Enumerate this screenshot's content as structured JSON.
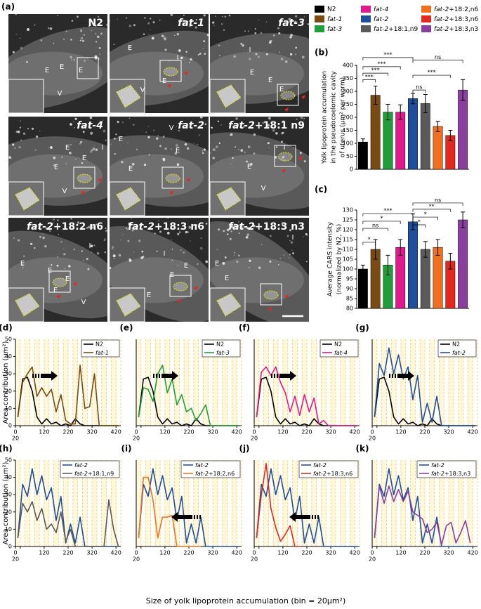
{
  "figure": {
    "x_axis_label": "Size of yolk lipoprotein accumulation (bin = 20μm²)"
  },
  "panel_a": {
    "panel_label": "(a)",
    "images": [
      {
        "title": "N2",
        "labels": [
          "E",
          "E",
          "E",
          "V"
        ]
      },
      {
        "title": "fat-1",
        "labels": [
          "E",
          "I",
          "V",
          "E"
        ]
      },
      {
        "title": "fat-3",
        "labels": [
          "I",
          "E",
          "E",
          "E"
        ]
      },
      {
        "title": "fat-4",
        "labels": [
          "I",
          "E",
          "E",
          "E",
          "V"
        ]
      },
      {
        "title": "fat-2",
        "labels": [
          "V",
          "E",
          "E",
          "E"
        ]
      },
      {
        "title": "fat-2+18:1 n9",
        "labels": [
          "I",
          "E",
          "V"
        ]
      },
      {
        "title": "fat-2+18:2 n6",
        "labels": [
          "I",
          "E",
          "E",
          "E",
          "E",
          "V"
        ]
      },
      {
        "title": "fat-2+18:3 n6",
        "labels": [
          "I",
          "E",
          "E",
          "E"
        ]
      },
      {
        "title": "fat-2+18:3 n3",
        "labels": [
          "I",
          "E",
          "E"
        ]
      }
    ]
  },
  "chart_data": [
    {
      "type": "bar",
      "panel_label": "(b)",
      "ylabel": [
        "Yolk lipoprotein accumulation",
        "in the pseudocoelomic cavity",
        "of uterus (μm² per worm)"
      ],
      "categories": [
        "N2",
        "fat-1",
        "fat-3",
        "fat-4",
        "fat-2",
        "fat-2+18:1,n9",
        "fat-2+18:2,n6",
        "fat-2+18:3,n6",
        "fat-2+18:3,n3"
      ],
      "colors": [
        "#000000",
        "#7b4a12",
        "#1f9e3a",
        "#e0198c",
        "#1f4e9c",
        "#5a5a5a",
        "#f07020",
        "#e5281e",
        "#8a3fa0"
      ],
      "values": [
        105,
        285,
        220,
        220,
        272,
        253,
        165,
        130,
        305
      ],
      "errors": [
        12,
        35,
        30,
        28,
        20,
        35,
        20,
        20,
        40
      ],
      "ylim": [
        0,
        400
      ],
      "yticks": [
        0,
        50,
        100,
        150,
        200,
        250,
        300,
        350,
        400
      ],
      "annotations": [
        "***",
        "***",
        "***",
        "***",
        "ns",
        "***",
        "ns"
      ]
    },
    {
      "type": "bar",
      "panel_label": "(c)",
      "ylabel": [
        "Average CARS intensity",
        "(normalized by N2, %)"
      ],
      "colors": [
        "#000000",
        "#7b4a12",
        "#1f9e3a",
        "#e0198c",
        "#1f4e9c",
        "#5a5a5a",
        "#f07020",
        "#e5281e",
        "#8a3fa0"
      ],
      "values": [
        100,
        110,
        102,
        111,
        124,
        110,
        111,
        104,
        125
      ],
      "errors": [
        2,
        5,
        5,
        4,
        4,
        4,
        4,
        4,
        4
      ],
      "ylim": [
        80,
        130
      ],
      "yticks": [
        80,
        85,
        90,
        95,
        100,
        105,
        110,
        115,
        120,
        125,
        130
      ],
      "annotations": [
        "*",
        "ns",
        "*",
        "***",
        "*",
        "*",
        "**",
        "ns"
      ]
    },
    {
      "type": "line",
      "panel_label": "(d)",
      "ylabel": "Area contribution (μm²)",
      "x": [
        10,
        30,
        50,
        70,
        90,
        110,
        130,
        150,
        170,
        190,
        210,
        230,
        250,
        270,
        290,
        310,
        330,
        350,
        370,
        390,
        410,
        430
      ],
      "series": [
        {
          "name": "N2",
          "color": "#000000",
          "values": [
            5,
            27,
            28,
            20,
            5,
            1,
            4,
            1,
            2,
            0,
            1,
            0,
            4,
            1,
            0,
            0,
            0,
            0,
            0,
            0,
            0,
            0
          ]
        },
        {
          "name": "fat-1",
          "color": "#7b4a12",
          "values": [
            5,
            25,
            30,
            34,
            17,
            22,
            17,
            21,
            8,
            18,
            3,
            1,
            1,
            35,
            10,
            11,
            30,
            0,
            0,
            0,
            0,
            0
          ]
        }
      ],
      "xlim": [
        0,
        440
      ],
      "ylim": [
        0,
        50
      ],
      "xticks": [
        0,
        20,
        120,
        220,
        320,
        420
      ],
      "yticks": [
        0,
        10,
        20,
        30,
        40,
        50
      ]
    },
    {
      "type": "line",
      "panel_label": "(e)",
      "x": [
        10,
        30,
        50,
        70,
        90,
        110,
        130,
        150,
        170,
        190,
        210,
        230,
        250,
        270,
        290,
        310,
        330,
        350,
        370,
        390,
        410,
        430
      ],
      "series": [
        {
          "name": "N2",
          "color": "#000000",
          "values": [
            5,
            27,
            28,
            20,
            5,
            1,
            4,
            1,
            2,
            0,
            1,
            0,
            4,
            1,
            0,
            0,
            0,
            0,
            0,
            0,
            0,
            0
          ]
        },
        {
          "name": "fat-3",
          "color": "#1f9e3a",
          "values": [
            5,
            22,
            21,
            14,
            30,
            35,
            19,
            27,
            12,
            18,
            8,
            10,
            3,
            7,
            12,
            0,
            0,
            0,
            0,
            0,
            0,
            0
          ]
        }
      ],
      "xlim": [
        0,
        440
      ],
      "ylim": [
        0,
        50
      ],
      "xticks": [
        0,
        20,
        120,
        220,
        320,
        420
      ]
    },
    {
      "type": "line",
      "panel_label": "(f)",
      "x": [
        10,
        30,
        50,
        70,
        90,
        110,
        130,
        150,
        170,
        190,
        210,
        230,
        250,
        270,
        290,
        310,
        330,
        350,
        370,
        390,
        410,
        430
      ],
      "series": [
        {
          "name": "N2",
          "color": "#000000",
          "values": [
            5,
            27,
            28,
            20,
            5,
            1,
            4,
            1,
            2,
            0,
            1,
            0,
            4,
            1,
            0,
            0,
            0,
            0,
            0,
            0,
            0,
            0
          ]
        },
        {
          "name": "fat-4",
          "color": "#e0198c",
          "values": [
            5,
            31,
            34,
            29,
            34,
            25,
            19,
            8,
            17,
            6,
            18,
            8,
            16,
            1,
            3,
            0,
            0,
            0,
            0,
            0,
            0,
            0
          ]
        }
      ],
      "xlim": [
        0,
        440
      ],
      "ylim": [
        0,
        50
      ],
      "xticks": [
        0,
        20,
        120,
        220,
        320,
        420
      ]
    },
    {
      "type": "line",
      "panel_label": "(g)",
      "x": [
        10,
        30,
        50,
        70,
        90,
        110,
        130,
        150,
        170,
        190,
        210,
        230,
        250,
        270,
        290,
        310,
        330,
        350,
        370,
        390,
        410,
        430
      ],
      "series": [
        {
          "name": "N2",
          "color": "#000000",
          "values": [
            5,
            27,
            28,
            20,
            5,
            1,
            4,
            1,
            2,
            0,
            1,
            0,
            4,
            1,
            0,
            0,
            0,
            0,
            0,
            0,
            0,
            0
          ]
        },
        {
          "name": "fat-2",
          "color": "#1f4e9c",
          "values": [
            5,
            36,
            29,
            45,
            30,
            41,
            27,
            34,
            15,
            29,
            2,
            13,
            2,
            17,
            0,
            0,
            0,
            0,
            0,
            0,
            0,
            0
          ]
        }
      ],
      "xlim": [
        0,
        440
      ],
      "ylim": [
        0,
        50
      ],
      "xticks": [
        0,
        20,
        120,
        220,
        320,
        420
      ]
    },
    {
      "type": "line",
      "panel_label": "(h)",
      "ylabel": "Area contribution (μm²)",
      "x": [
        10,
        30,
        50,
        70,
        90,
        110,
        130,
        150,
        170,
        190,
        210,
        230,
        250,
        270,
        290,
        310,
        330,
        350,
        370,
        390,
        410,
        430
      ],
      "series": [
        {
          "name": "fat-2",
          "color": "#1f4e9c",
          "values": [
            5,
            36,
            29,
            45,
            30,
            41,
            27,
            34,
            15,
            29,
            2,
            13,
            2,
            17,
            0,
            0,
            0,
            0,
            0,
            0,
            0,
            0
          ]
        },
        {
          "name": "fat-2+18:1,n9",
          "color": "#5a5a5a",
          "values": [
            5,
            25,
            20,
            26,
            15,
            22,
            10,
            13,
            8,
            20,
            3,
            10,
            0,
            0,
            0,
            0,
            0,
            0,
            0,
            27,
            10,
            0
          ]
        }
      ],
      "xlim": [
        0,
        440
      ],
      "ylim": [
        0,
        50
      ],
      "xticks": [
        0,
        20,
        120,
        220,
        320,
        420
      ],
      "yticks": [
        0,
        10,
        20,
        30,
        40,
        50
      ]
    },
    {
      "type": "line",
      "panel_label": "(i)",
      "x": [
        10,
        30,
        50,
        70,
        90,
        110,
        130,
        150,
        170,
        190,
        210,
        230,
        250,
        270,
        290,
        310,
        330,
        350,
        370,
        390,
        410,
        430
      ],
      "series": [
        {
          "name": "fat-2",
          "color": "#1f4e9c",
          "values": [
            5,
            36,
            29,
            45,
            30,
            41,
            27,
            34,
            15,
            29,
            2,
            13,
            2,
            17,
            0,
            0,
            0,
            0,
            0,
            0,
            0,
            0
          ]
        },
        {
          "name": "fat-2+18:2,n6",
          "color": "#f07020",
          "values": [
            5,
            40,
            40,
            27,
            5,
            17,
            17,
            18,
            0,
            0,
            0,
            0,
            0,
            0,
            null,
            null,
            null,
            null,
            null,
            null,
            null,
            null
          ]
        }
      ],
      "xlim": [
        0,
        440
      ],
      "ylim": [
        0,
        50
      ],
      "xticks": [
        0,
        20,
        120,
        220,
        320,
        420
      ]
    },
    {
      "type": "line",
      "panel_label": "(j)",
      "x": [
        10,
        30,
        50,
        70,
        90,
        110,
        130,
        150,
        170,
        190,
        210,
        230,
        250,
        270,
        290,
        310,
        330,
        350,
        370,
        390,
        410,
        430
      ],
      "series": [
        {
          "name": "fat-2",
          "color": "#1f4e9c",
          "values": [
            5,
            36,
            29,
            45,
            30,
            41,
            27,
            34,
            15,
            29,
            2,
            13,
            2,
            17,
            0,
            0,
            0,
            0,
            0,
            0,
            0,
            0
          ]
        },
        {
          "name": "fat-2+18:3,n6",
          "color": "#e5281e",
          "values": [
            5,
            30,
            48,
            22,
            11,
            3,
            7,
            12,
            0,
            0,
            null,
            null,
            null,
            null,
            null,
            null,
            null,
            null,
            null,
            null,
            null,
            null
          ]
        }
      ],
      "xlim": [
        0,
        440
      ],
      "ylim": [
        0,
        50
      ],
      "xticks": [
        0,
        20,
        120,
        220,
        320,
        420
      ]
    },
    {
      "type": "line",
      "panel_label": "(k)",
      "x": [
        10,
        30,
        50,
        70,
        90,
        110,
        130,
        150,
        170,
        190,
        210,
        230,
        250,
        270,
        290,
        310,
        330,
        350,
        370,
        390,
        410,
        430
      ],
      "series": [
        {
          "name": "fat-2",
          "color": "#1f4e9c",
          "values": [
            5,
            36,
            29,
            45,
            30,
            41,
            27,
            34,
            15,
            29,
            2,
            13,
            2,
            17,
            0,
            0,
            0,
            0,
            0,
            0,
            0,
            0
          ]
        },
        {
          "name": "fat-2+18:3,n3",
          "color": "#8a3fa0",
          "values": [
            5,
            35,
            25,
            35,
            26,
            33,
            26,
            32,
            20,
            18,
            16,
            8,
            10,
            14,
            1,
            12,
            14,
            2,
            8,
            15,
            2,
            null
          ]
        }
      ],
      "xlim": [
        0,
        440
      ],
      "ylim": [
        0,
        50
      ],
      "xticks": [
        0,
        20,
        120,
        220,
        320,
        420
      ]
    }
  ]
}
